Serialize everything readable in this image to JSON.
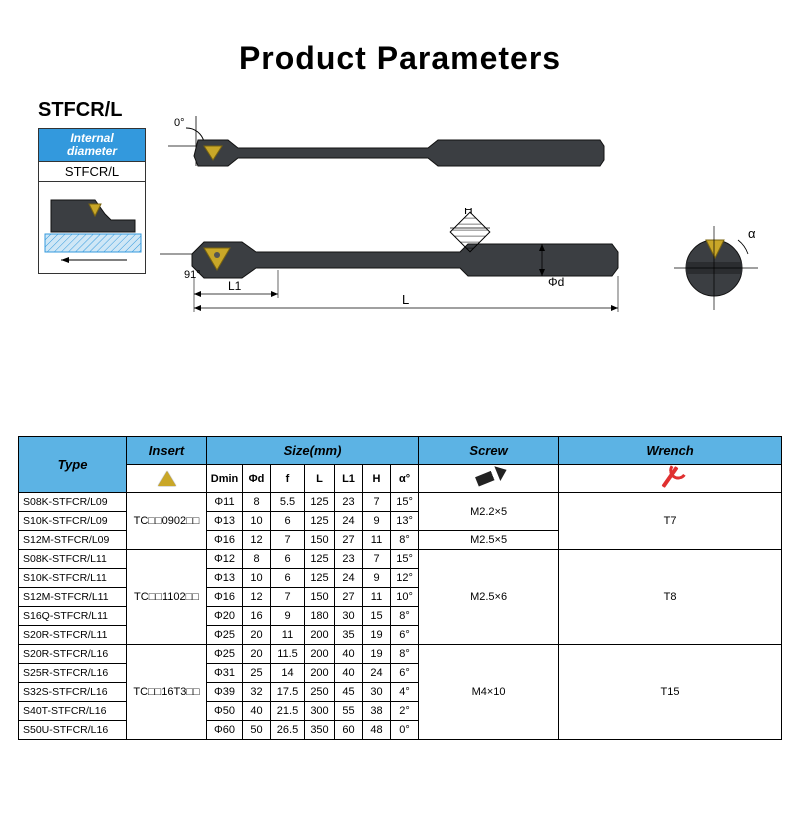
{
  "title": "Product Parameters",
  "model_label": "STFCR/L",
  "internal_box": {
    "header_line1": "Internal",
    "header_line2": "diameter",
    "label": "STFCR/L"
  },
  "diagram_labels": {
    "angle_top": "0°",
    "angle_cut": "91°",
    "L": "L",
    "L1": "L1",
    "d": "Φd",
    "H": "H",
    "alpha": "α"
  },
  "colors": {
    "header_bg": "#5cb3e4",
    "tool_body": "#3b3e42",
    "insert": "#c9a728",
    "diagram_blue": "#3399dd"
  },
  "table": {
    "headers": {
      "type": "Type",
      "insert": "Insert",
      "size": "Size(mm)",
      "screw": "Screw",
      "wrench": "Wrench"
    },
    "size_sub": [
      "Dmin",
      "Φd",
      "f",
      "L",
      "L1",
      "H",
      "α°"
    ],
    "groups": [
      {
        "insert": "TC□□0902□□",
        "screw_groups": [
          {
            "screw": "M2.2×5",
            "wrench": "T7",
            "rows": [
              {
                "type": "S08K-STFCR/L09",
                "Dmin": "Φ11",
                "d": "8",
                "f": "5.5",
                "L": "125",
                "L1": "23",
                "H": "7",
                "a": "15°"
              },
              {
                "type": "S10K-STFCR/L09",
                "Dmin": "Φ13",
                "d": "10",
                "f": "6",
                "L": "125",
                "L1": "24",
                "H": "9",
                "a": "13°"
              }
            ]
          },
          {
            "screw": "M2.5×5",
            "wrench": "T7",
            "rows": [
              {
                "type": "S12M-STFCR/L09",
                "Dmin": "Φ16",
                "d": "12",
                "f": "7",
                "L": "150",
                "L1": "27",
                "H": "11",
                "a": "8°"
              }
            ]
          }
        ]
      },
      {
        "insert": "TC□□1102□□",
        "screw_groups": [
          {
            "screw": "M2.5×6",
            "wrench": "T8",
            "rows": [
              {
                "type": "S08K-STFCR/L11",
                "Dmin": "Φ12",
                "d": "8",
                "f": "6",
                "L": "125",
                "L1": "23",
                "H": "7",
                "a": "15°"
              },
              {
                "type": "S10K-STFCR/L11",
                "Dmin": "Φ13",
                "d": "10",
                "f": "6",
                "L": "125",
                "L1": "24",
                "H": "9",
                "a": "12°"
              },
              {
                "type": "S12M-STFCR/L11",
                "Dmin": "Φ16",
                "d": "12",
                "f": "7",
                "L": "150",
                "L1": "27",
                "H": "11",
                "a": "10°"
              },
              {
                "type": "S16Q-STFCR/L11",
                "Dmin": "Φ20",
                "d": "16",
                "f": "9",
                "L": "180",
                "L1": "30",
                "H": "15",
                "a": "8°"
              },
              {
                "type": "S20R-STFCR/L11",
                "Dmin": "Φ25",
                "d": "20",
                "f": "11",
                "L": "200",
                "L1": "35",
                "H": "19",
                "a": "6°"
              }
            ]
          }
        ]
      },
      {
        "insert": "TC□□16T3□□",
        "screw_groups": [
          {
            "screw": "M4×10",
            "wrench": "T15",
            "rows": [
              {
                "type": "S20R-STFCR/L16",
                "Dmin": "Φ25",
                "d": "20",
                "f": "11.5",
                "L": "200",
                "L1": "40",
                "H": "19",
                "a": "8°"
              },
              {
                "type": "S25R-STFCR/L16",
                "Dmin": "Φ31",
                "d": "25",
                "f": "14",
                "L": "200",
                "L1": "40",
                "H": "24",
                "a": "6°"
              },
              {
                "type": "S32S-STFCR/L16",
                "Dmin": "Φ39",
                "d": "32",
                "f": "17.5",
                "L": "250",
                "L1": "45",
                "H": "30",
                "a": "4°"
              },
              {
                "type": "S40T-STFCR/L16",
                "Dmin": "Φ50",
                "d": "40",
                "f": "21.5",
                "L": "300",
                "L1": "55",
                "H": "38",
                "a": "2°"
              },
              {
                "type": "S50U-STFCR/L16",
                "Dmin": "Φ60",
                "d": "50",
                "f": "26.5",
                "L": "350",
                "L1": "60",
                "H": "48",
                "a": "0°"
              }
            ]
          }
        ]
      }
    ]
  }
}
